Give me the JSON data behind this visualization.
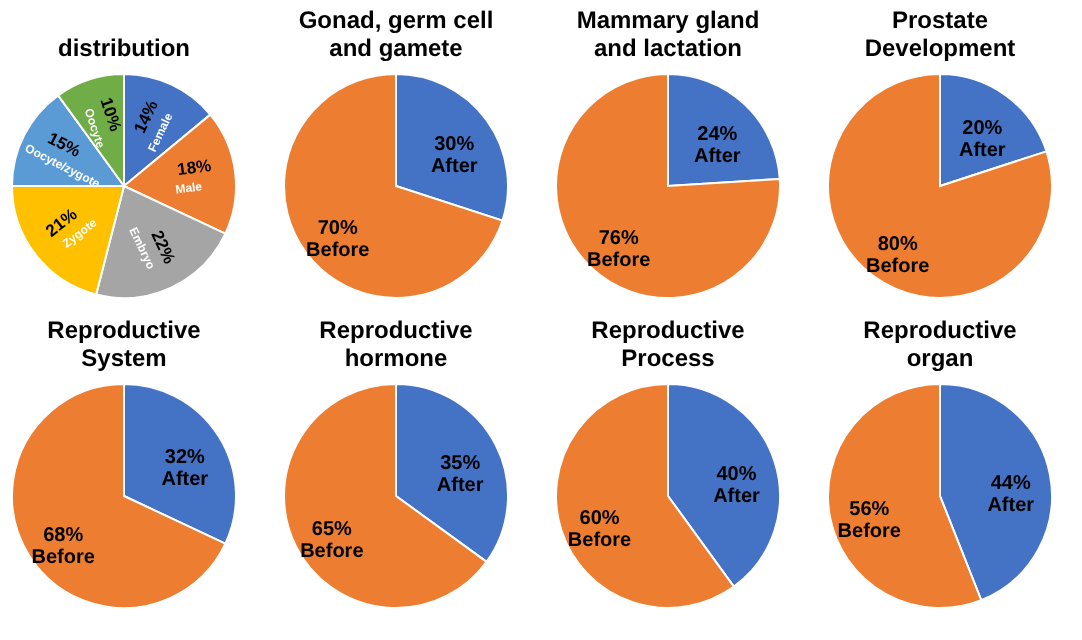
{
  "chart_data": [
    {
      "type": "pie",
      "title": "distribution",
      "categories": [
        "Female",
        "Male",
        "Embryo",
        "Zygote",
        "Oocyte/zygote",
        "Oocyte"
      ],
      "values": [
        14,
        18,
        22,
        21,
        15,
        10
      ],
      "value_labels": [
        "14%",
        "18%",
        "22%",
        "21%",
        "15%",
        "10%"
      ],
      "colors": [
        "#4472c4",
        "#ed7d31",
        "#a5a5a5",
        "#ffc000",
        "#5b9bd5",
        "#70ad47"
      ]
    },
    {
      "type": "pie",
      "title": "Gonad, germ cell and gamete",
      "categories": [
        "After",
        "Before"
      ],
      "values": [
        30,
        70
      ],
      "value_labels": [
        "30%",
        "70%"
      ],
      "colors": [
        "#4472c4",
        "#ed7d31"
      ]
    },
    {
      "type": "pie",
      "title": "Mammary gland and lactation",
      "categories": [
        "After",
        "Before"
      ],
      "values": [
        24,
        76
      ],
      "value_labels": [
        "24%",
        "76%"
      ],
      "colors": [
        "#4472c4",
        "#ed7d31"
      ]
    },
    {
      "type": "pie",
      "title": "Prostate Development",
      "categories": [
        "After",
        "Before"
      ],
      "values": [
        20,
        80
      ],
      "value_labels": [
        "20%",
        "80%"
      ],
      "colors": [
        "#4472c4",
        "#ed7d31"
      ]
    },
    {
      "type": "pie",
      "title": "Reproductive System",
      "categories": [
        "After",
        "Before"
      ],
      "values": [
        32,
        68
      ],
      "value_labels": [
        "32%",
        "68%"
      ],
      "colors": [
        "#4472c4",
        "#ed7d31"
      ]
    },
    {
      "type": "pie",
      "title": "Reproductive hormone",
      "categories": [
        "After",
        "Before"
      ],
      "values": [
        35,
        65
      ],
      "value_labels": [
        "35%",
        "65%"
      ],
      "colors": [
        "#4472c4",
        "#ed7d31"
      ]
    },
    {
      "type": "pie",
      "title": "Reproductive Process",
      "categories": [
        "After",
        "Before"
      ],
      "values": [
        40,
        60
      ],
      "value_labels": [
        "40%",
        "60%"
      ],
      "colors": [
        "#4472c4",
        "#ed7d31"
      ]
    },
    {
      "type": "pie",
      "title": "Reproductive organ",
      "categories": [
        "After",
        "Before"
      ],
      "values": [
        44,
        56
      ],
      "value_labels": [
        "44%",
        "56%"
      ],
      "colors": [
        "#4472c4",
        "#ed7d31"
      ]
    }
  ]
}
